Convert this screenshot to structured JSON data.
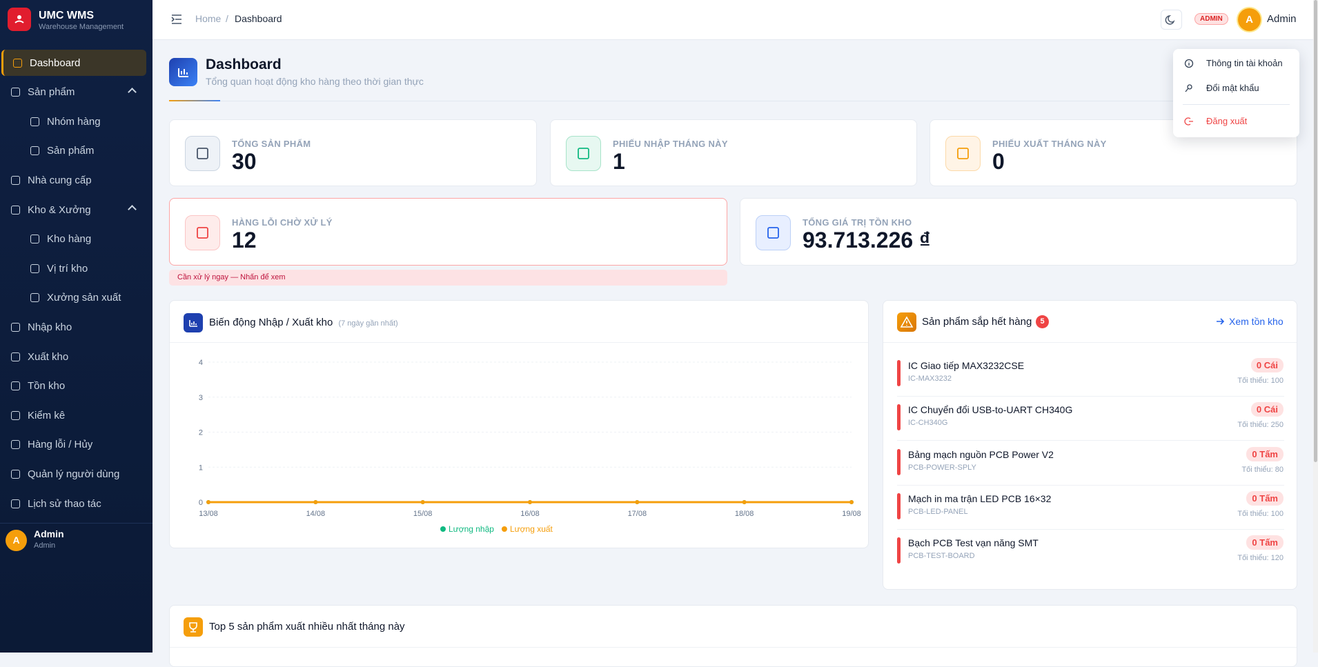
{
  "sidebar": {
    "brand": "UMC WMS",
    "brand_sub": "Warehouse Management",
    "menu": [
      {
        "label": "Dashboard"
      },
      {
        "label": "Sản phẩm",
        "children": [
          "Nhóm hàng",
          "Sản phẩm"
        ]
      },
      {
        "label": "Nhà cung cấp"
      },
      {
        "label": "Kho & Xưởng",
        "children": [
          "Kho hàng",
          "Vị trí kho",
          "Xưởng sản xuất"
        ]
      },
      {
        "label": "Nhập kho"
      },
      {
        "label": "Xuất kho"
      },
      {
        "label": "Tồn kho"
      },
      {
        "label": "Kiểm kê"
      },
      {
        "label": "Hàng lỗi / Hủy"
      },
      {
        "label": "Quản lý người dùng"
      },
      {
        "label": "Lịch sử thao tác"
      }
    ],
    "user": {
      "initial": "A",
      "name": "Admin",
      "role": "Admin"
    }
  },
  "header": {
    "breadcrumb": [
      "Home",
      "Dashboard"
    ],
    "separator": "/",
    "badge": "ADMIN",
    "initial": "A",
    "user": "Admin"
  },
  "user_menu": [
    "Thông tin tài khoản",
    "Đổi mật khẩu",
    "Đăng xuất"
  ],
  "page": {
    "title": "Dashboard",
    "subtitle": "Tổng quan hoạt động kho hàng theo thời gian thực"
  },
  "stats": [
    {
      "label": "TỔNG SẢN PHẨM",
      "value": 30
    },
    {
      "label": "PHIẾU NHẬP THÁNG NÀY",
      "value": 1
    },
    {
      "label": "PHIẾU XUẤT THÁNG NÀY",
      "value": 0
    },
    {
      "label": "HÀNG LỖI CHỜ XỬ LÝ",
      "value": 12
    },
    {
      "label": "TỔNG GIÁ TRỊ TỒN KHO",
      "value": "93.713.226 ₫"
    }
  ],
  "alert": "Cần xử lý ngay — Nhấn để xem",
  "chart_data": {
    "type": "line",
    "title": "Biến động Nhập / Xuất kho",
    "subtitle": "(7 ngày gần nhất)",
    "categories": [
      "13/08",
      "14/08",
      "15/08",
      "16/08",
      "17/08",
      "18/08",
      "19/08"
    ],
    "series": [
      {
        "name": "Lượng nhập",
        "color": "#10b981",
        "values": [
          0,
          0,
          0,
          0,
          0,
          0,
          0
        ]
      },
      {
        "name": "Lượng xuất",
        "color": "#f59e0b",
        "values": [
          0,
          0,
          0,
          0,
          0,
          0,
          0
        ]
      }
    ],
    "ylim": [
      0,
      4
    ],
    "yticks": [
      0,
      1,
      2,
      3,
      4
    ],
    "grid": true,
    "legend": "bottom"
  },
  "low_stock": {
    "title": "Sản phẩm sắp hết hàng",
    "count": 5,
    "link": "Xem tồn kho",
    "items": [
      {
        "name": "IC Giao tiếp MAX3232CSE",
        "code": "IC-MAX3232",
        "qty": "0 Cái",
        "min": "Tối thiểu: 100"
      },
      {
        "name": "IC Chuyển đổi USB-to-UART CH340G",
        "code": "IC-CH340G",
        "qty": "0 Cái",
        "min": "Tối thiểu: 250"
      },
      {
        "name": "Bảng mạch nguồn PCB Power V2",
        "code": "PCB-POWER-SPLY",
        "qty": "0 Tấm",
        "min": "Tối thiểu: 80"
      },
      {
        "name": "Mạch in ma trận LED PCB 16×32",
        "code": "PCB-LED-PANEL",
        "qty": "0 Tấm",
        "min": "Tối thiểu: 100"
      },
      {
        "name": "Bạch PCB Test vạn năng SMT",
        "code": "PCB-TEST-BOARD",
        "qty": "0 Tấm",
        "min": "Tối thiểu: 120"
      }
    ]
  },
  "top5": {
    "title": "Top 5 sản phẩm xuất nhiều nhất tháng này"
  }
}
